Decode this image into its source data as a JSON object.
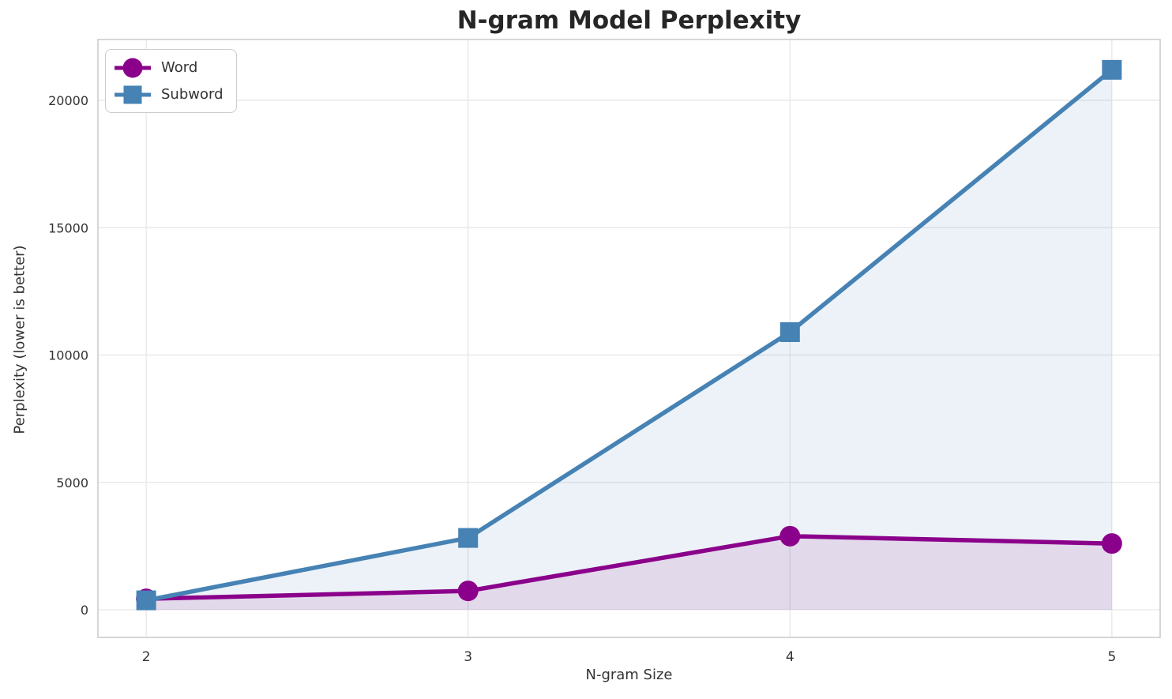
{
  "chart_data": {
    "type": "line",
    "title": "N-gram Model Perplexity",
    "xlabel": "N-gram Size",
    "ylabel": "Perplexity (lower is better)",
    "x": [
      2,
      3,
      4,
      5
    ],
    "series": [
      {
        "name": "Word",
        "color": "#8b008b",
        "marker": "circle",
        "fill_alpha": 0.1,
        "values": [
          430,
          740,
          2890,
          2600
        ]
      },
      {
        "name": "Subword",
        "color": "#4682b4",
        "marker": "square",
        "fill_alpha": 0.1,
        "values": [
          370,
          2820,
          10900,
          21200
        ]
      }
    ],
    "xticks": [
      2,
      3,
      4,
      5
    ],
    "yticks": [
      0,
      5000,
      10000,
      15000,
      20000
    ],
    "xtick_labels": [
      "2",
      "3",
      "4",
      "5"
    ],
    "ytick_labels": [
      "0",
      "5000",
      "10000",
      "15000",
      "20000"
    ],
    "xlim": [
      1.85,
      5.15
    ],
    "ylim": [
      -1085,
      22390
    ],
    "grid": true,
    "area_fill_baseline": 0,
    "legend_position": "upper-left",
    "line_width": 5.5,
    "circle_radius": 13,
    "square_size": 25
  },
  "colors": {
    "background": "#ffffff",
    "grid": "#e7e7e7",
    "spine": "#c9c9c9",
    "tick_text": "#333333",
    "title_text": "#262626",
    "label_text": "#333333",
    "legend_border": "#cccccc"
  }
}
